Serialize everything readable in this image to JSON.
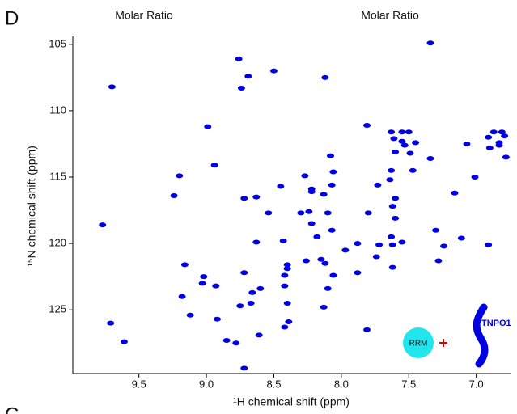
{
  "panel_label": "D",
  "top_labels": [
    "Molar Ratio",
    "Molar Ratio"
  ],
  "next_panel_label": "C",
  "chart_data": {
    "type": "scatter",
    "xlabel": "¹H chemical shift (ppm)",
    "ylabel": "¹⁵N chemical shift (ppm)",
    "xlim": [
      9.99,
      6.74
    ],
    "ylim": [
      104.4,
      129.8
    ],
    "xticks": [
      9.5,
      {
        "value": 9,
        "label": "9.0"
      },
      8.5,
      {
        "value": 8,
        "label": "8.0"
      },
      7.5,
      {
        "value": 7,
        "label": "7.0"
      }
    ],
    "yticks": [
      105,
      110,
      115,
      120,
      125
    ],
    "color": "#0000e0",
    "x": [
      9.77,
      9.7,
      9.71,
      9.61,
      9.24,
      9.2,
      9.16,
      9.18,
      9.12,
      9.02,
      9.03,
      8.99,
      8.94,
      8.93,
      8.92,
      8.85,
      8.78,
      8.76,
      8.74,
      8.69,
      8.72,
      8.72,
      8.75,
      8.72,
      8.67,
      8.66,
      8.63,
      8.63,
      8.6,
      8.61,
      8.54,
      8.5,
      8.45,
      8.43,
      8.4,
      8.4,
      8.42,
      8.42,
      8.4,
      8.42,
      8.39,
      8.3,
      8.27,
      8.22,
      8.22,
      8.24,
      8.22,
      8.18,
      8.26,
      8.15,
      8.13,
      8.12,
      8.13,
      8.1,
      8.06,
      8.07,
      8.07,
      8.08,
      8.12,
      8.06,
      8.1,
      7.97,
      7.81,
      7.8,
      7.81,
      7.88,
      7.88,
      7.73,
      7.72,
      7.74,
      7.64,
      7.63,
      7.62,
      7.62,
      7.63,
      7.61,
      7.55,
      7.6,
      7.63,
      7.62,
      7.6,
      7.6,
      7.55,
      7.53,
      7.5,
      7.49,
      7.47,
      7.55,
      7.45,
      7.34,
      7.34,
      7.3,
      7.28,
      7.24,
      7.16,
      7.11,
      7.07,
      7.01,
      6.91,
      6.87,
      6.91,
      6.9,
      6.83,
      6.81,
      6.79,
      6.83,
      6.78
    ],
    "y": [
      118.6,
      108.2,
      126.0,
      127.4,
      116.4,
      114.9,
      121.6,
      124.0,
      125.4,
      122.5,
      123.0,
      111.2,
      114.1,
      123.2,
      125.7,
      127.3,
      127.5,
      106.1,
      108.3,
      107.4,
      116.6,
      122.2,
      124.7,
      129.4,
      124.5,
      123.7,
      116.5,
      119.9,
      123.4,
      126.9,
      117.7,
      107.0,
      115.7,
      119.8,
      121.6,
      121.9,
      122.4,
      123.2,
      124.5,
      126.3,
      125.9,
      117.7,
      114.9,
      115.9,
      116.1,
      117.6,
      118.5,
      119.5,
      121.3,
      121.2,
      116.3,
      107.5,
      124.8,
      117.7,
      114.6,
      115.6,
      119.0,
      113.4,
      121.5,
      122.4,
      123.4,
      120.5,
      111.1,
      117.7,
      126.5,
      120.0,
      122.2,
      115.6,
      120.1,
      121.0,
      115.2,
      119.5,
      120.1,
      121.8,
      111.6,
      112.1,
      111.6,
      113.1,
      114.5,
      117.2,
      116.6,
      118.1,
      112.3,
      112.6,
      111.6,
      113.2,
      114.5,
      119.9,
      112.4,
      104.9,
      113.6,
      119.0,
      121.3,
      120.2,
      116.2,
      119.6,
      112.5,
      115.0,
      120.1,
      111.6,
      112.0,
      112.8,
      112.6,
      111.6,
      111.9,
      112.4,
      113.5
    ]
  },
  "cartoon": {
    "left": "RRM",
    "right": "TNPO1"
  }
}
